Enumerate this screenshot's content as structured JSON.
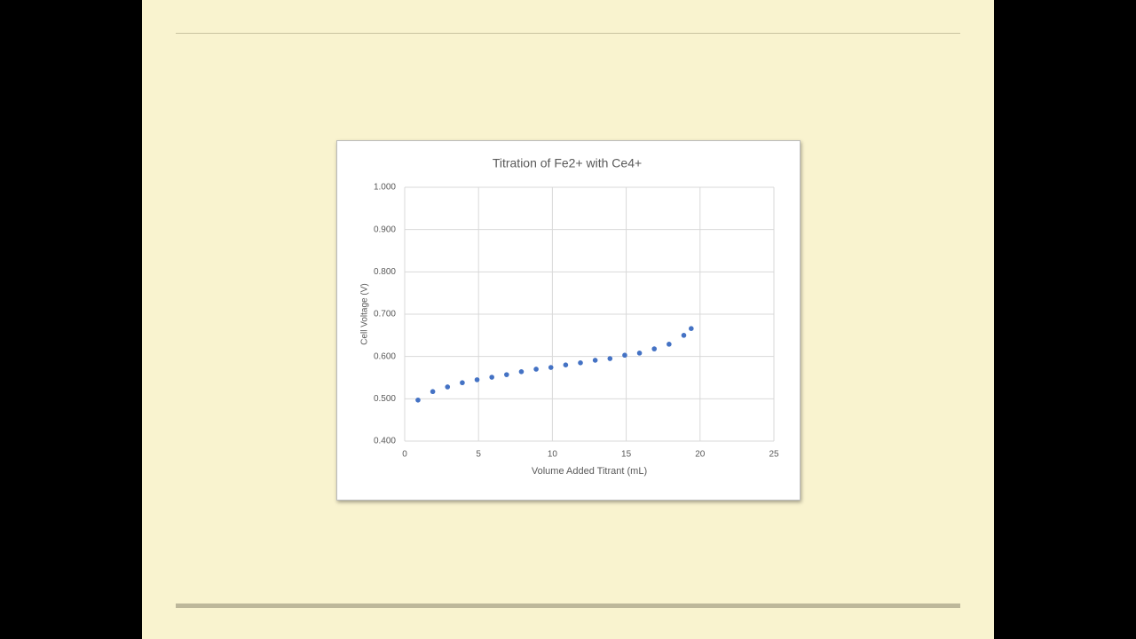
{
  "chart_data": {
    "type": "scatter",
    "title": "Titration of Fe2+ with Ce4+",
    "x_label": "Volume Added Titrant (mL)",
    "y_label": "Cell Voltage (V)",
    "x": [
      0.9,
      1.9,
      2.9,
      3.9,
      4.9,
      5.9,
      6.9,
      7.9,
      8.9,
      9.9,
      10.9,
      11.9,
      12.9,
      13.9,
      14.9,
      15.9,
      16.9,
      17.9,
      18.9,
      19.4
    ],
    "values": [
      0.497,
      0.517,
      0.528,
      0.538,
      0.545,
      0.551,
      0.557,
      0.564,
      0.57,
      0.574,
      0.58,
      0.585,
      0.591,
      0.595,
      0.603,
      0.608,
      0.618,
      0.629,
      0.65,
      0.666
    ],
    "color": "#4472c4",
    "xlim": [
      0,
      25
    ],
    "xticks": [
      0,
      5,
      10,
      15,
      20,
      25
    ],
    "ylim": [
      0.4,
      1.0
    ],
    "yticks": [
      {
        "value": 0.4,
        "label": "0.400"
      },
      {
        "value": 0.5,
        "label": "0.500"
      },
      {
        "value": 0.6,
        "label": "0.600"
      },
      {
        "value": 0.7,
        "label": "0.700"
      },
      {
        "value": 0.8,
        "label": "0.800"
      },
      {
        "value": 0.9,
        "label": "0.900"
      },
      {
        "value": 1.0,
        "label": "1.000"
      }
    ],
    "grid": true
  }
}
